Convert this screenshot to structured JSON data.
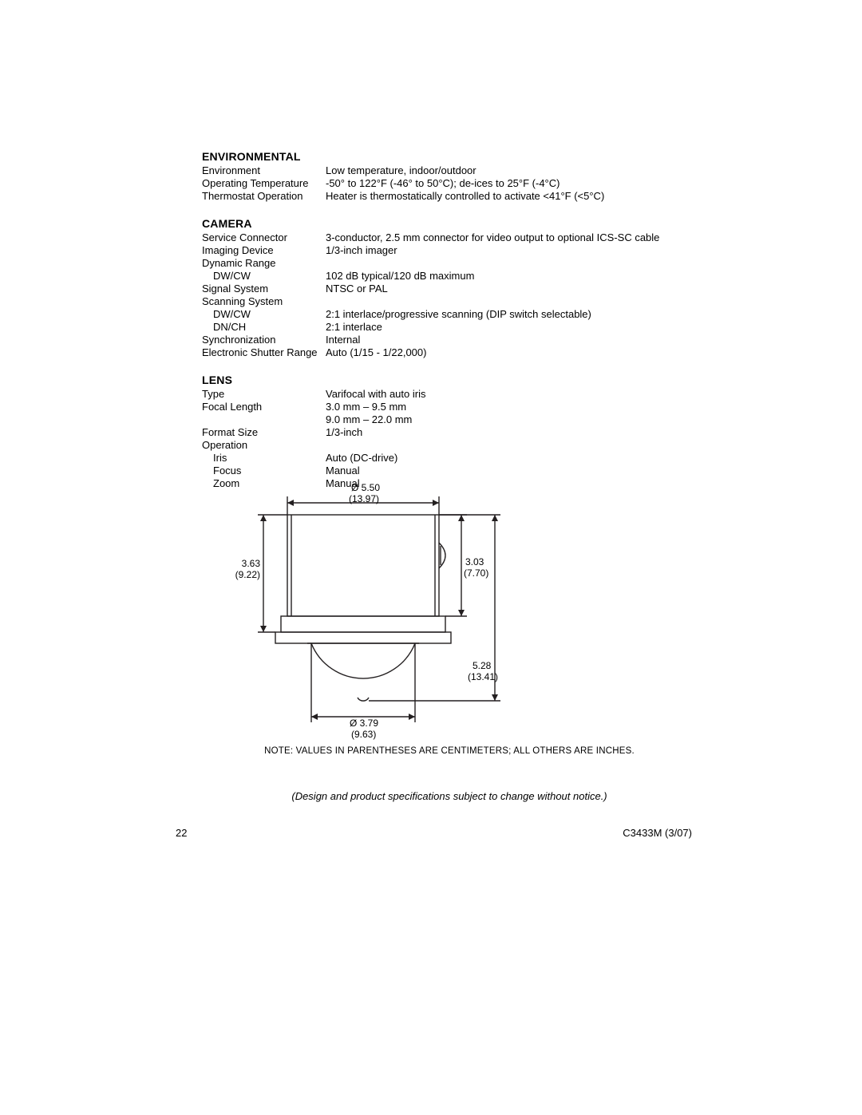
{
  "colors": {
    "text": "#000000",
    "background": "#ffffff",
    "line": "#231f20"
  },
  "typography": {
    "body_fontsize_pt": 10,
    "heading_fontsize_pt": 10,
    "heading_weight": "bold",
    "note_fontsize_pt": 9,
    "dim_fontsize_pt": 9
  },
  "sections": {
    "environmental": {
      "heading": "ENVIRONMENTAL",
      "rows": [
        {
          "label": "Environment",
          "value": "Low temperature, indoor/outdoor"
        },
        {
          "label": "Operating Temperature",
          "value": "-50° to 122°F (-46° to 50°C); de-ices to 25°F (-4°C)"
        },
        {
          "label": "Thermostat Operation",
          "value": "Heater is thermostatically controlled to activate <41°F (<5°C)"
        }
      ]
    },
    "camera": {
      "heading": "CAMERA",
      "rows": [
        {
          "label": "Service Connector",
          "value": "3-conductor, 2.5 mm connector for video output to optional ICS-SC cable"
        },
        {
          "label": "Imaging Device",
          "value": "1/3-inch imager"
        },
        {
          "label": "Dynamic Range",
          "value": ""
        },
        {
          "label": "DW/CW",
          "value": "102 dB typical/120 dB maximum",
          "indent": true
        },
        {
          "label": "Signal System",
          "value": "NTSC or PAL"
        },
        {
          "label": "Scanning System",
          "value": ""
        },
        {
          "label": "DW/CW",
          "value": "2:1 interlace/progressive scanning (DIP switch selectable)",
          "indent": true
        },
        {
          "label": "DN/CH",
          "value": "2:1 interlace",
          "indent": true
        },
        {
          "label": "Synchronization",
          "value": "Internal"
        },
        {
          "label": "Electronic Shutter Range",
          "value": "Auto (1/15 - 1/22,000)"
        }
      ]
    },
    "lens": {
      "heading": "LENS",
      "rows": [
        {
          "label": "Type",
          "value": "Varifocal with auto iris"
        },
        {
          "label": "Focal Length",
          "value": "3.0 mm – 9.5 mm"
        },
        {
          "label": "",
          "value": "9.0 mm – 22.0 mm"
        },
        {
          "label": "Format Size",
          "value": "1/3-inch"
        },
        {
          "label": "Operation",
          "value": ""
        },
        {
          "label": "Iris",
          "value": "Auto (DC-drive)",
          "indent": true
        },
        {
          "label": "Focus",
          "value": "Manual",
          "indent": true
        },
        {
          "label": "Zoom",
          "value": "Manual",
          "indent": true
        }
      ]
    }
  },
  "diagram": {
    "type": "dimensioned-drawing",
    "line_color": "#231f20",
    "line_width": 1.4,
    "top_diameter": {
      "line1": "Ø 5.50",
      "line2": "(13.97)"
    },
    "left_height": {
      "line1": "3.63",
      "line2": "(9.22)"
    },
    "right_height": {
      "line1": "3.03",
      "line2": "(7.70)"
    },
    "total_height": {
      "line1": "5.28",
      "line2": "(13.41)"
    },
    "dome_diameter": {
      "line1": "Ø 3.79",
      "line2": "(9.63)"
    }
  },
  "note": "NOTE:  VALUES IN PARENTHESES ARE CENTIMETERS; ALL OTHERS ARE INCHES.",
  "design_note": "(Design and product specifications subject to change without notice.)",
  "footer": {
    "page": "22",
    "doc_id": "C3433M (3/07)"
  }
}
